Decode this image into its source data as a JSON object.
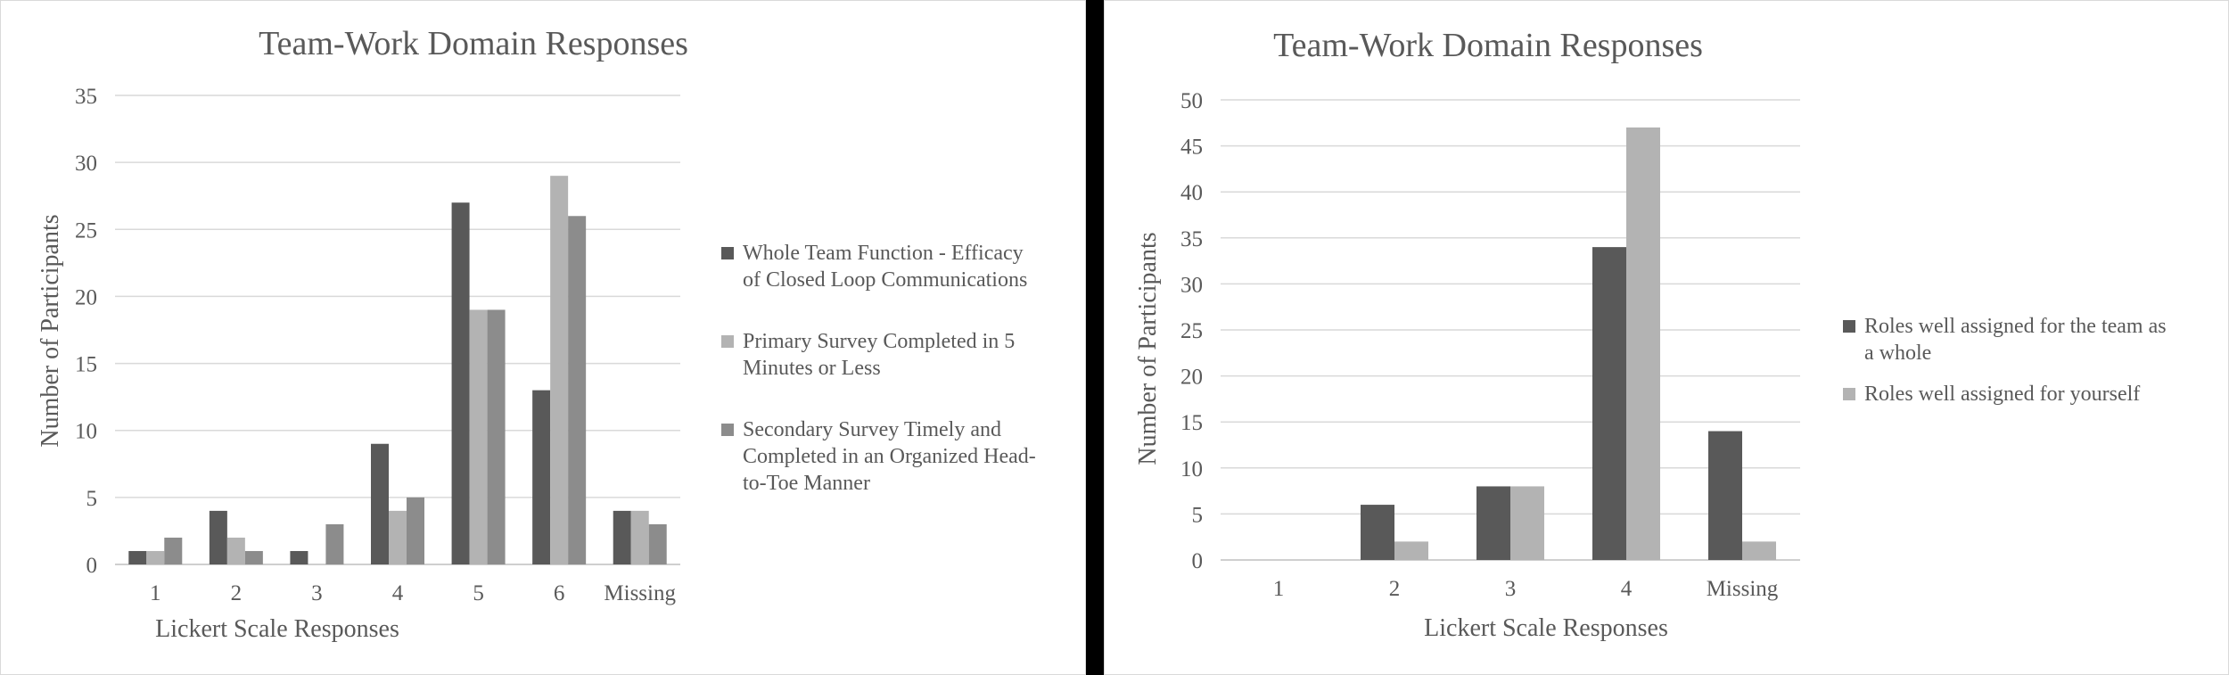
{
  "chart_data": [
    {
      "type": "bar",
      "title": "Team-Work Domain Responses",
      "xlabel": "Lickert Scale Responses",
      "ylabel": "Number of Participants",
      "ylim": [
        0,
        35
      ],
      "ytick_step": 5,
      "grid": true,
      "legend_position": "right",
      "categories": [
        "1",
        "2",
        "3",
        "4",
        "5",
        "6",
        "Missing"
      ],
      "series": [
        {
          "name": "Whole Team Function - Efficacy of Closed Loop Communications",
          "legend_lines": [
            "Whole Team Function - Efficacy",
            "of Closed Loop Communications"
          ],
          "color": "#595959",
          "values": [
            1,
            4,
            1,
            9,
            27,
            13,
            4
          ]
        },
        {
          "name": "Primary Survey Completed in 5 Minutes or Less",
          "legend_lines": [
            "Primary Survey Completed in 5",
            "Minutes or Less"
          ],
          "color": "#b3b3b3",
          "values": [
            1,
            2,
            0,
            4,
            19,
            29,
            4
          ]
        },
        {
          "name": "Secondary Survey Timely and Completed in an Organized Head-to-Toe Manner",
          "legend_lines": [
            "Secondary Survey Timely and",
            "Completed in an Organized Head-",
            "to-Toe Manner"
          ],
          "color": "#8c8c8c",
          "values": [
            2,
            1,
            3,
            5,
            19,
            26,
            3
          ]
        }
      ]
    },
    {
      "type": "bar",
      "title": "Team-Work Domain Responses",
      "xlabel": "Lickert Scale Responses",
      "ylabel": "Number of Participants",
      "ylim": [
        0,
        50
      ],
      "ytick_step": 5,
      "grid": true,
      "legend_position": "right",
      "categories": [
        "1",
        "2",
        "3",
        "4",
        "Missing"
      ],
      "series": [
        {
          "name": "Roles well assigned for the team as a whole",
          "legend_lines": [
            "Roles well assigned for the team as",
            "a whole"
          ],
          "color": "#595959",
          "values": [
            0,
            6,
            8,
            34,
            14
          ]
        },
        {
          "name": "Roles well assigned for yourself",
          "legend_lines": [
            "Roles well assigned for yourself"
          ],
          "color": "#b3b3b3",
          "values": [
            0,
            2,
            8,
            47,
            2
          ]
        }
      ]
    }
  ]
}
